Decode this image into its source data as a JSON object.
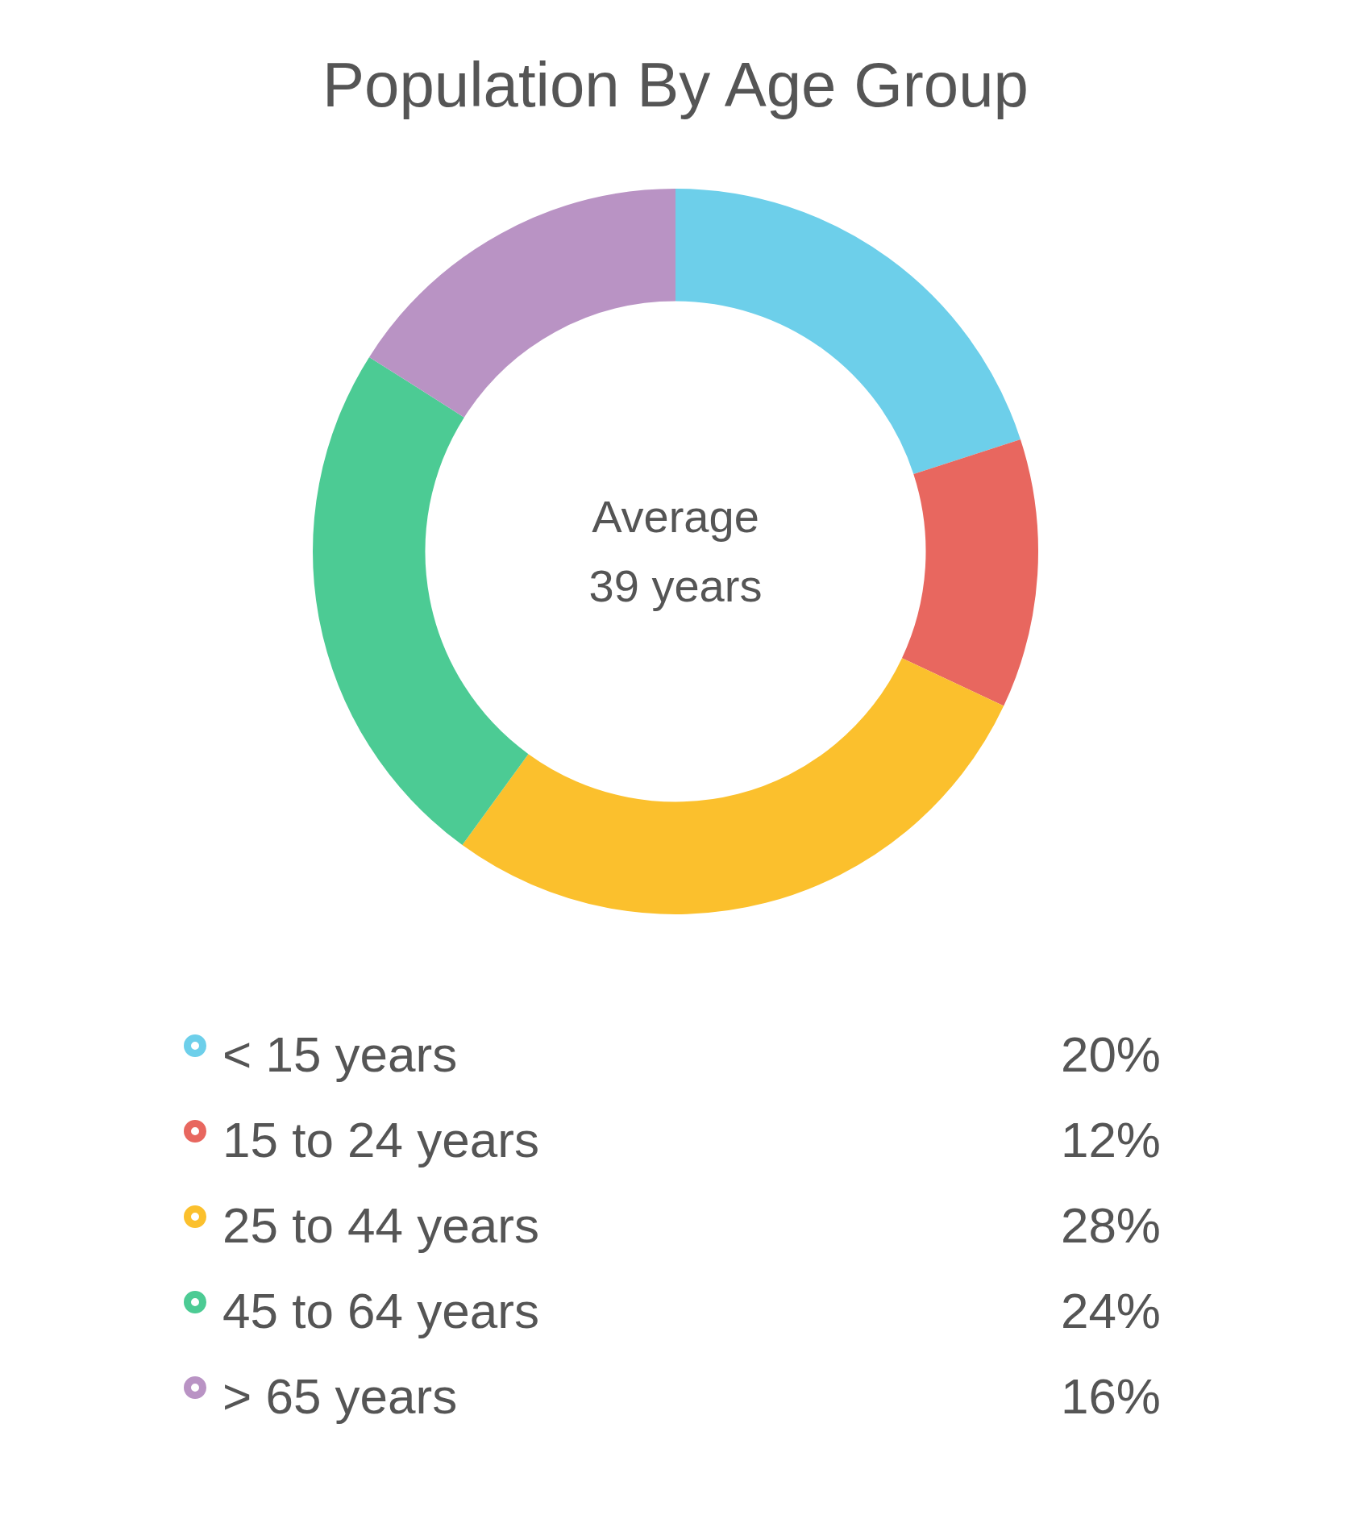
{
  "chart_data": {
    "type": "donut",
    "title": "Population By Age Group",
    "categories": [
      "< 15 years",
      "15 to 24 years",
      "25 to 44 years",
      "45 to 64 years",
      "> 65 years"
    ],
    "values": [
      20,
      12,
      28,
      24,
      16
    ],
    "colors": [
      "#6dcfea",
      "#e8675f",
      "#fbc02d",
      "#4ccb94",
      "#b993c4"
    ],
    "value_labels": [
      "20%",
      "12%",
      "28%",
      "24%",
      "16%"
    ],
    "annotations": [
      "Average",
      "39 years"
    ],
    "legend": "bottom"
  }
}
